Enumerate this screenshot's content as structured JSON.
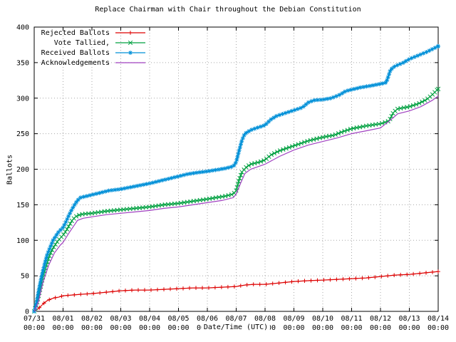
{
  "chart_data": {
    "type": "line",
    "title": "Replace Chairman with Chair throughout the Debian Constitution",
    "xlabel": "Date/Time (UTC)",
    "ylabel": "Ballots",
    "ylim": [
      0,
      400
    ],
    "x_unit": "days since 07/31 00:00",
    "grid": true,
    "legend_position": "top-left",
    "y_ticks": [
      0,
      50,
      100,
      150,
      200,
      250,
      300,
      350,
      400
    ],
    "x_ticks": [
      {
        "label": "07/31",
        "sub": "00:00",
        "day": 0
      },
      {
        "label": "08/01",
        "sub": "00:00",
        "day": 1
      },
      {
        "label": "08/02",
        "sub": "00:00",
        "day": 2
      },
      {
        "label": "08/03",
        "sub": "00:00",
        "day": 3
      },
      {
        "label": "08/04",
        "sub": "00:00",
        "day": 4
      },
      {
        "label": "08/05",
        "sub": "00:00",
        "day": 5
      },
      {
        "label": "08/06",
        "sub": "00:00",
        "day": 6
      },
      {
        "label": "08/07",
        "sub": "00:00",
        "day": 7
      },
      {
        "label": "08/08",
        "sub": "00:00",
        "day": 8
      },
      {
        "label": "08/09",
        "sub": "00:00",
        "day": 9
      },
      {
        "label": "08/10",
        "sub": "00:00",
        "day": 10
      },
      {
        "label": "08/11",
        "sub": "00:00",
        "day": 11
      },
      {
        "label": "08/12",
        "sub": "00:00",
        "day": 12
      },
      {
        "label": "08/13",
        "sub": "00:00",
        "day": 13
      },
      {
        "label": "08/14",
        "sub": "00:00",
        "day": 14
      }
    ],
    "series": [
      {
        "name": "Rejected Ballots",
        "color": "#dd0000",
        "marker": "plus",
        "marker_spacing": 9,
        "points": [
          [
            0,
            0
          ],
          [
            0.08,
            2
          ],
          [
            0.15,
            4
          ],
          [
            0.25,
            8
          ],
          [
            0.35,
            12
          ],
          [
            0.45,
            15
          ],
          [
            0.55,
            17
          ],
          [
            0.7,
            19
          ],
          [
            0.85,
            20
          ],
          [
            1,
            22
          ],
          [
            1.3,
            23
          ],
          [
            1.6,
            24
          ],
          [
            2,
            25
          ],
          [
            2.5,
            27
          ],
          [
            3,
            29
          ],
          [
            3.5,
            30
          ],
          [
            4,
            30
          ],
          [
            4.5,
            31
          ],
          [
            5,
            32
          ],
          [
            5.5,
            33
          ],
          [
            6,
            33
          ],
          [
            6.5,
            34
          ],
          [
            7,
            35
          ],
          [
            7.3,
            37
          ],
          [
            7.6,
            38
          ],
          [
            8,
            38
          ],
          [
            8.5,
            40
          ],
          [
            9,
            42
          ],
          [
            9.4,
            43
          ],
          [
            10,
            44
          ],
          [
            10.5,
            45
          ],
          [
            11,
            46
          ],
          [
            11.5,
            47
          ],
          [
            12,
            49
          ],
          [
            12.5,
            51
          ],
          [
            13,
            52
          ],
          [
            13.5,
            54
          ],
          [
            14,
            56
          ]
        ]
      },
      {
        "name": "Vote Tallied,",
        "color": "#00a040",
        "marker": "x",
        "marker_spacing": 4.5,
        "points": [
          [
            0,
            0
          ],
          [
            0.1,
            12
          ],
          [
            0.2,
            30
          ],
          [
            0.3,
            48
          ],
          [
            0.4,
            62
          ],
          [
            0.5,
            75
          ],
          [
            0.6,
            85
          ],
          [
            0.7,
            92
          ],
          [
            0.8,
            98
          ],
          [
            0.9,
            103
          ],
          [
            1,
            107
          ],
          [
            1.1,
            113
          ],
          [
            1.2,
            120
          ],
          [
            1.3,
            127
          ],
          [
            1.4,
            132
          ],
          [
            1.5,
            135
          ],
          [
            1.7,
            137
          ],
          [
            2,
            138
          ],
          [
            2.5,
            141
          ],
          [
            3,
            143
          ],
          [
            3.5,
            145
          ],
          [
            4,
            147
          ],
          [
            4.5,
            150
          ],
          [
            5,
            152
          ],
          [
            5.5,
            155
          ],
          [
            6,
            158
          ],
          [
            6.3,
            160
          ],
          [
            6.6,
            162
          ],
          [
            6.9,
            165
          ],
          [
            7,
            170
          ],
          [
            7.1,
            185
          ],
          [
            7.2,
            196
          ],
          [
            7.35,
            203
          ],
          [
            7.5,
            207
          ],
          [
            7.8,
            210
          ],
          [
            8,
            213
          ],
          [
            8.2,
            220
          ],
          [
            8.5,
            226
          ],
          [
            9,
            233
          ],
          [
            9.5,
            240
          ],
          [
            10,
            245
          ],
          [
            10.4,
            248
          ],
          [
            10.7,
            253
          ],
          [
            11,
            257
          ],
          [
            11.5,
            261
          ],
          [
            12,
            264
          ],
          [
            12.3,
            268
          ],
          [
            12.45,
            280
          ],
          [
            12.6,
            285
          ],
          [
            13,
            288
          ],
          [
            13.3,
            292
          ],
          [
            13.6,
            298
          ],
          [
            13.8,
            305
          ],
          [
            14,
            313
          ]
        ]
      },
      {
        "name": "Received Ballots",
        "color": "#0090d8",
        "marker": "star",
        "marker_spacing": 4.5,
        "points": [
          [
            0,
            0
          ],
          [
            0.08,
            12
          ],
          [
            0.15,
            28
          ],
          [
            0.25,
            48
          ],
          [
            0.35,
            65
          ],
          [
            0.45,
            80
          ],
          [
            0.55,
            90
          ],
          [
            0.65,
            100
          ],
          [
            0.75,
            106
          ],
          [
            0.85,
            112
          ],
          [
            1,
            118
          ],
          [
            1.1,
            126
          ],
          [
            1.2,
            135
          ],
          [
            1.3,
            143
          ],
          [
            1.4,
            150
          ],
          [
            1.5,
            156
          ],
          [
            1.6,
            160
          ],
          [
            1.8,
            162
          ],
          [
            2,
            164
          ],
          [
            2.3,
            167
          ],
          [
            2.6,
            170
          ],
          [
            3,
            172
          ],
          [
            3.5,
            176
          ],
          [
            4,
            180
          ],
          [
            4.3,
            183
          ],
          [
            4.6,
            186
          ],
          [
            5,
            190
          ],
          [
            5.3,
            193
          ],
          [
            5.6,
            195
          ],
          [
            6,
            197
          ],
          [
            6.3,
            199
          ],
          [
            6.6,
            201
          ],
          [
            6.9,
            204
          ],
          [
            7,
            210
          ],
          [
            7.1,
            226
          ],
          [
            7.2,
            241
          ],
          [
            7.3,
            250
          ],
          [
            7.5,
            255
          ],
          [
            7.7,
            258
          ],
          [
            8,
            262
          ],
          [
            8.2,
            270
          ],
          [
            8.4,
            275
          ],
          [
            8.7,
            279
          ],
          [
            9,
            283
          ],
          [
            9.3,
            287
          ],
          [
            9.5,
            294
          ],
          [
            9.7,
            297
          ],
          [
            10,
            298
          ],
          [
            10.3,
            300
          ],
          [
            10.6,
            305
          ],
          [
            10.8,
            310
          ],
          [
            11,
            312
          ],
          [
            11.3,
            315
          ],
          [
            11.6,
            317
          ],
          [
            12,
            320
          ],
          [
            12.2,
            322
          ],
          [
            12.35,
            340
          ],
          [
            12.5,
            345
          ],
          [
            12.8,
            350
          ],
          [
            13,
            355
          ],
          [
            13.3,
            360
          ],
          [
            13.6,
            365
          ],
          [
            14,
            373
          ]
        ]
      },
      {
        "name": "Acknowledgements",
        "color": "#a040c0",
        "marker": "none",
        "marker_spacing": 0,
        "points": [
          [
            0,
            0
          ],
          [
            0.15,
            14
          ],
          [
            0.3,
            40
          ],
          [
            0.5,
            65
          ],
          [
            0.7,
            82
          ],
          [
            0.9,
            93
          ],
          [
            1,
            97
          ],
          [
            1.2,
            110
          ],
          [
            1.4,
            122
          ],
          [
            1.5,
            128
          ],
          [
            1.7,
            131
          ],
          [
            2,
            133
          ],
          [
            2.5,
            136
          ],
          [
            3,
            138
          ],
          [
            3.5,
            140
          ],
          [
            4,
            142
          ],
          [
            4.5,
            145
          ],
          [
            5,
            147
          ],
          [
            5.5,
            150
          ],
          [
            6,
            153
          ],
          [
            6.5,
            156
          ],
          [
            6.9,
            160
          ],
          [
            7,
            165
          ],
          [
            7.15,
            180
          ],
          [
            7.3,
            194
          ],
          [
            7.5,
            200
          ],
          [
            8,
            207
          ],
          [
            8.5,
            218
          ],
          [
            9,
            227
          ],
          [
            9.5,
            234
          ],
          [
            10,
            239
          ],
          [
            10.5,
            244
          ],
          [
            11,
            250
          ],
          [
            11.5,
            254
          ],
          [
            12,
            258
          ],
          [
            12.4,
            271
          ],
          [
            12.6,
            278
          ],
          [
            13,
            282
          ],
          [
            13.4,
            288
          ],
          [
            13.8,
            297
          ],
          [
            14,
            303
          ]
        ]
      }
    ]
  }
}
